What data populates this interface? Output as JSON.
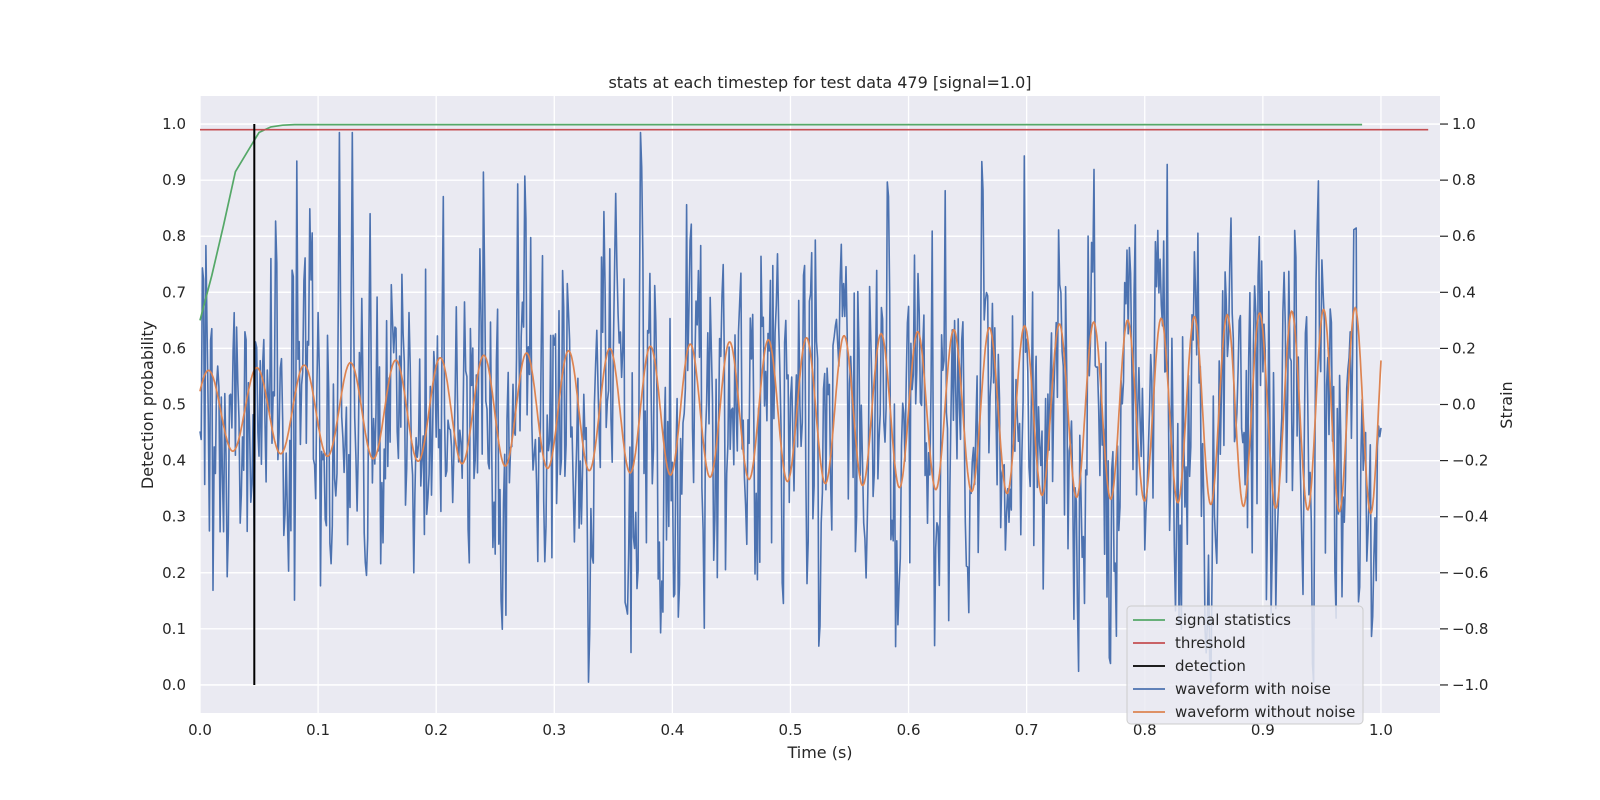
{
  "chart_data": {
    "type": "line",
    "title": "stats at each timestep for test data 479 [signal=1.0]",
    "xlabel": "Time (s)",
    "ylabel_left": "Detection probability",
    "ylabel_right": "Strain",
    "xlim": [
      0.0,
      1.05
    ],
    "ylim_left": [
      -0.05,
      1.05
    ],
    "ylim_right": [
      -1.1,
      1.1
    ],
    "x_ticks": [
      "0.0",
      "0.1",
      "0.2",
      "0.3",
      "0.4",
      "0.5",
      "0.6",
      "0.7",
      "0.8",
      "0.9",
      "1.0"
    ],
    "x_tick_values": [
      0.0,
      0.1,
      0.2,
      0.3,
      0.4,
      0.5,
      0.6,
      0.7,
      0.8,
      0.9,
      1.0
    ],
    "y_ticks_left": [
      "0.0",
      "0.1",
      "0.2",
      "0.3",
      "0.4",
      "0.5",
      "0.6",
      "0.7",
      "0.8",
      "0.9",
      "1.0"
    ],
    "y_tick_values_left": [
      0.0,
      0.1,
      0.2,
      0.3,
      0.4,
      0.5,
      0.6,
      0.7,
      0.8,
      0.9,
      1.0
    ],
    "y_ticks_right": [
      "−1.0",
      "−0.8",
      "−0.6",
      "−0.4",
      "−0.2",
      "0.0",
      "0.2",
      "0.4",
      "0.6",
      "0.8",
      "1.0"
    ],
    "y_tick_values_right": [
      -1.0,
      -0.8,
      -0.6,
      -0.4,
      -0.2,
      0.0,
      0.2,
      0.4,
      0.6,
      0.8,
      1.0
    ],
    "grid": true,
    "legend_position": "lower-right",
    "series": [
      {
        "name": "signal statistics",
        "axis": "left",
        "color": "#55a868",
        "x": [
          0.0,
          0.01,
          0.02,
          0.03,
          0.04,
          0.05,
          0.06,
          0.07,
          0.08,
          0.1,
          0.3,
          0.5,
          0.7,
          0.9,
          0.984
        ],
        "y": [
          0.65,
          0.73,
          0.82,
          0.915,
          0.95,
          0.985,
          0.995,
          0.998,
          0.999,
          0.999,
          0.999,
          0.999,
          0.999,
          0.999,
          0.999
        ]
      },
      {
        "name": "threshold",
        "axis": "left",
        "color": "#c44e52",
        "x": [
          0.0,
          1.04
        ],
        "y": [
          0.99,
          0.99
        ]
      },
      {
        "name": "detection",
        "axis": "left",
        "color": "#000000",
        "x": [
          0.046,
          0.046
        ],
        "y": [
          0.0,
          1.0
        ]
      },
      {
        "name": "waveform with noise",
        "axis": "right",
        "color": "#4c72b0",
        "x_range": [
          0.0,
          1.0
        ],
        "min": -0.99,
        "max": 0.97,
        "noise_amplitude": 0.42,
        "seed": 479
      },
      {
        "name": "waveform without noise",
        "axis": "right",
        "color": "#dd8452",
        "x_range": [
          0.0,
          1.0
        ],
        "amplitude_start": 0.14,
        "amplitude_end": 0.37,
        "offset_start": -0.02,
        "offset_end": -0.02,
        "frequency_start": 24,
        "frequency_end": 38
      }
    ]
  },
  "colors": {
    "plot_background": "#eaeaf2",
    "grid": "#ffffff",
    "legend_background": "#eaeaf2",
    "legend_border": "#cccccc"
  }
}
